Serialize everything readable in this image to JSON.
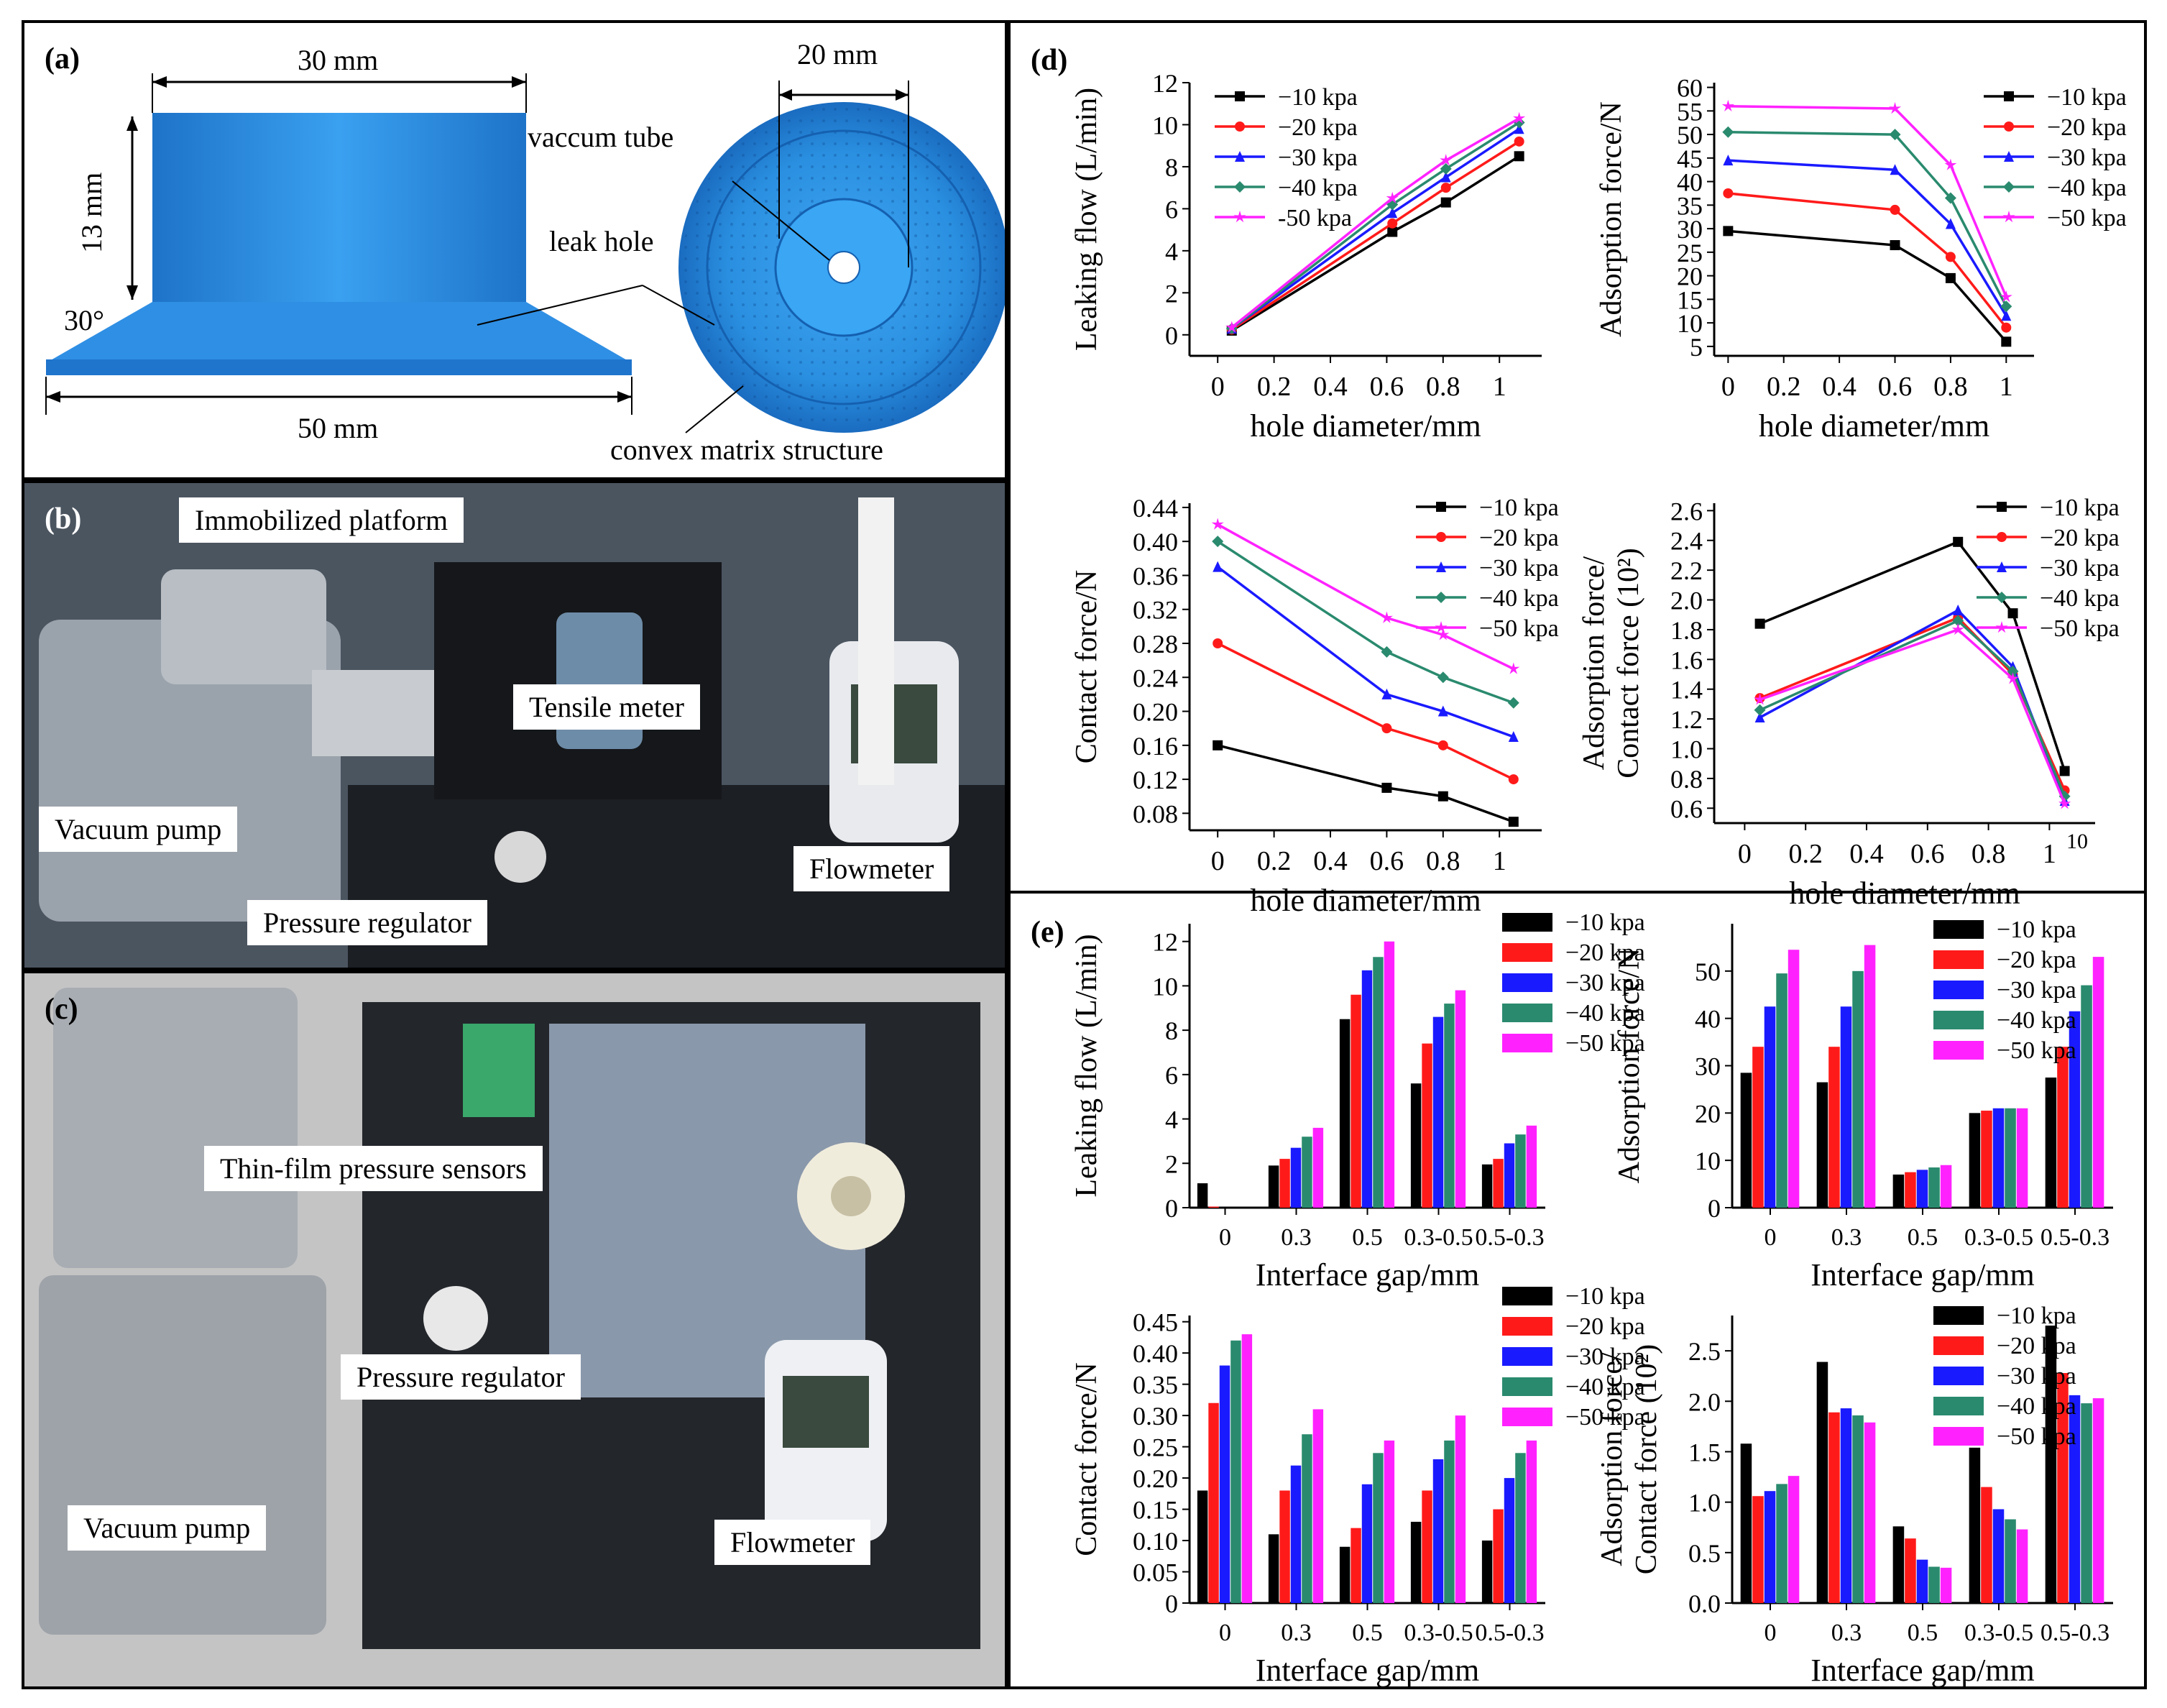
{
  "panels": {
    "a": {
      "label": "(a)",
      "dim_top": "30 mm",
      "dim_height": "13 mm",
      "dim_angle": "30°",
      "dim_bottom": "50 mm",
      "dim_inner": "20 mm",
      "callout_tube": "vaccum tube",
      "callout_hole": "leak hole",
      "callout_matrix": "convex matrix structure"
    },
    "b": {
      "label": "(b)",
      "tags": {
        "platform": "Immobilized platform",
        "tensile": "Tensile meter",
        "pump": "Vacuum pump",
        "flowmeter": "Flowmeter",
        "regulator": "Pressure regulator"
      }
    },
    "c": {
      "label": "(c)",
      "tags": {
        "sensors": "Thin-film pressure sensors",
        "regulator": "Pressure regulator",
        "pump": "Vacuum pump",
        "flowmeter": "Flowmeter"
      }
    },
    "d": {
      "label": "(d)"
    },
    "e": {
      "label": "(e)"
    }
  },
  "colors": {
    "s10": "#000000",
    "s20": "#ff1a1a",
    "s30": "#1a1aff",
    "s40": "#2a8a6e",
    "s50": "#ff22ff",
    "device": "#2a8fe0",
    "photo_dark": "#2a2f36",
    "photo_floor": "#bfbfbf"
  },
  "chart_data": [
    {
      "id": "d1",
      "type": "line",
      "xlabel": "hole diameter/mm",
      "ylabel": "Leaking flow  (L/min)",
      "xlim": [
        -0.1,
        1.15
      ],
      "ylim": [
        -1,
        12
      ],
      "xticks": [
        "0",
        "0.2",
        "0.4",
        "0.6",
        "0.8",
        "1"
      ],
      "xtickvals": [
        0,
        0.2,
        0.4,
        0.6,
        0.8,
        1.0
      ],
      "yticks": [
        "0",
        "2",
        "4",
        "6",
        "8",
        "10",
        "12"
      ],
      "ytickvals": [
        0,
        2,
        4,
        6,
        8,
        10,
        12
      ],
      "x": [
        0.05,
        0.62,
        0.81,
        1.07
      ],
      "series": [
        {
          "name": "−10 kpa",
          "values": [
            0.2,
            4.9,
            6.3,
            8.5
          ]
        },
        {
          "name": "−20 kpa",
          "values": [
            0.25,
            5.3,
            7.0,
            9.2
          ]
        },
        {
          "name": "−30 kpa",
          "values": [
            0.3,
            5.8,
            7.5,
            9.8
          ]
        },
        {
          "name": "−40 kpa",
          "values": [
            0.3,
            6.2,
            7.9,
            10.1
          ]
        },
        {
          "name": "-50 kpa",
          "values": [
            0.35,
            6.5,
            8.3,
            10.3
          ]
        }
      ]
    },
    {
      "id": "d2",
      "type": "line",
      "xlabel": "hole diameter/mm",
      "ylabel": "Adsorption force/N",
      "xlim": [
        -0.05,
        1.1
      ],
      "ylim": [
        3,
        61
      ],
      "xticks": [
        "0",
        "0.2",
        "0.4",
        "0.6",
        "0.8",
        "1"
      ],
      "xtickvals": [
        0,
        0.2,
        0.4,
        0.6,
        0.8,
        1.0
      ],
      "yticks": [
        "5",
        "10",
        "15",
        "20",
        "25",
        "30",
        "35",
        "40",
        "45",
        "50",
        "55",
        "60"
      ],
      "ytickvals": [
        5,
        10,
        15,
        20,
        25,
        30,
        35,
        40,
        45,
        50,
        55,
        60
      ],
      "x": [
        0.0,
        0.6,
        0.8,
        1.0
      ],
      "series": [
        {
          "name": "−10 kpa",
          "values": [
            29.5,
            26.5,
            19.5,
            6
          ]
        },
        {
          "name": "−20 kpa",
          "values": [
            37.5,
            34,
            24,
            9
          ]
        },
        {
          "name": "−30 kpa",
          "values": [
            44.5,
            42.5,
            31,
            11.5
          ]
        },
        {
          "name": "−40 kpa",
          "values": [
            50.5,
            50,
            36.5,
            13.5
          ]
        },
        {
          "name": "−50 kpa",
          "values": [
            56,
            55.5,
            43.5,
            15.5
          ]
        }
      ]
    },
    {
      "id": "d3",
      "type": "line",
      "xlabel": "hole diameter/mm",
      "ylabel": "Contact force/N",
      "xlim": [
        -0.1,
        1.15
      ],
      "ylim": [
        0.06,
        0.445
      ],
      "xticks": [
        "0",
        "0.2",
        "0.4",
        "0.6",
        "0.8",
        "1"
      ],
      "xtickvals": [
        0,
        0.2,
        0.4,
        0.6,
        0.8,
        1.0
      ],
      "yticks": [
        "0.08",
        "0.12",
        "0.16",
        "0.20",
        "0.24",
        "0.28",
        "0.32",
        "0.36",
        "0.40",
        "0.44"
      ],
      "ytickvals": [
        0.08,
        0.12,
        0.16,
        0.2,
        0.24,
        0.28,
        0.32,
        0.36,
        0.4,
        0.44
      ],
      "x": [
        0.0,
        0.6,
        0.8,
        1.05
      ],
      "series": [
        {
          "name": "−10 kpa",
          "values": [
            0.16,
            0.11,
            0.1,
            0.07
          ]
        },
        {
          "name": "−20 kpa",
          "values": [
            0.28,
            0.18,
            0.16,
            0.12
          ]
        },
        {
          "name": "−30 kpa",
          "values": [
            0.37,
            0.22,
            0.2,
            0.17
          ]
        },
        {
          "name": "−40 kpa",
          "values": [
            0.4,
            0.27,
            0.24,
            0.21
          ]
        },
        {
          "name": "−50 kpa",
          "values": [
            0.42,
            0.31,
            0.29,
            0.25
          ]
        }
      ]
    },
    {
      "id": "d4",
      "type": "line",
      "xlabel": "hole diameter/mm",
      "ylabel": "Adsorption force/\nContact force  (10²)",
      "xlim": [
        -0.1,
        1.15
      ],
      "ylim": [
        0.5,
        2.65
      ],
      "xticks": [
        "0",
        "0.2",
        "0.4",
        "0.6",
        "0.8",
        "1"
      ],
      "xtickvals": [
        0,
        0.2,
        0.4,
        0.6,
        0.8,
        1.0
      ],
      "extra_tick": "10",
      "yticks": [
        "0.6",
        "0.8",
        "1.0",
        "1.2",
        "1.4",
        "1.6",
        "1.8",
        "2.0",
        "2.2",
        "2.4",
        "2.6"
      ],
      "ytickvals": [
        0.6,
        0.8,
        1.0,
        1.2,
        1.4,
        1.6,
        1.8,
        2.0,
        2.2,
        2.4,
        2.6
      ],
      "x": [
        0.05,
        0.7,
        0.88,
        1.05
      ],
      "series": [
        {
          "name": "−10 kpa",
          "values": [
            1.84,
            2.39,
            1.91,
            0.85
          ]
        },
        {
          "name": "−20 kpa",
          "values": [
            1.34,
            1.88,
            1.5,
            0.72
          ]
        },
        {
          "name": "−30 kpa",
          "values": [
            1.21,
            1.93,
            1.55,
            0.65
          ]
        },
        {
          "name": "−40 kpa",
          "values": [
            1.26,
            1.86,
            1.52,
            0.68
          ]
        },
        {
          "name": "−50 kpa",
          "values": [
            1.33,
            1.8,
            1.47,
            0.63
          ]
        }
      ]
    },
    {
      "id": "e1",
      "type": "bar",
      "xlabel": "Interface gap/mm",
      "ylabel": "Leaking flow  (L/min)",
      "categories": [
        "0",
        "0.3",
        "0.5",
        "0.3-0.5",
        "0.5-0.3"
      ],
      "ylim": [
        0,
        12.8
      ],
      "yticks": [
        "0",
        "2",
        "4",
        "6",
        "8",
        "10",
        "12"
      ],
      "ytickvals": [
        0,
        2,
        4,
        6,
        8,
        10,
        12
      ],
      "series": [
        {
          "name": "−10 kpa",
          "values": [
            1.1,
            1.9,
            8.5,
            5.6,
            1.95
          ]
        },
        {
          "name": "−20 kpa",
          "values": [
            0.05,
            2.2,
            9.6,
            7.4,
            2.2
          ]
        },
        {
          "name": "−30 kpa",
          "values": [
            0,
            2.7,
            10.7,
            8.6,
            2.9
          ]
        },
        {
          "name": "−40 kpa",
          "values": [
            0,
            3.2,
            11.3,
            9.2,
            3.3
          ]
        },
        {
          "name": "−50 kpa",
          "values": [
            0,
            3.6,
            12.0,
            9.8,
            3.7
          ]
        }
      ]
    },
    {
      "id": "e2",
      "type": "bar",
      "xlabel": "Interface gap/mm",
      "ylabel": "Adsorption force/N",
      "categories": [
        "0",
        "0.3",
        "0.5",
        "0.3-0.5",
        "0.5-0.3"
      ],
      "ylim": [
        0,
        60
      ],
      "yticks": [
        "0",
        "10",
        "20",
        "30",
        "40",
        "50"
      ],
      "ytickvals": [
        0,
        10,
        20,
        30,
        40,
        50
      ],
      "series": [
        {
          "name": "−10 kpa",
          "values": [
            28.5,
            26.5,
            7,
            20,
            27.5
          ]
        },
        {
          "name": "−20 kpa",
          "values": [
            34,
            34,
            7.5,
            20.5,
            34
          ]
        },
        {
          "name": "−30 kpa",
          "values": [
            42.5,
            42.5,
            8,
            21,
            41.5
          ]
        },
        {
          "name": "−40 kpa",
          "values": [
            49.5,
            50,
            8.5,
            21,
            47
          ]
        },
        {
          "name": "−50 kpa",
          "values": [
            54.5,
            55.5,
            9,
            21,
            53
          ]
        }
      ]
    },
    {
      "id": "e3",
      "type": "bar",
      "xlabel": "Interface gap/mm",
      "ylabel": "Contact force/N",
      "categories": [
        "0",
        "0.3",
        "0.5",
        "0.3-0.5",
        "0.5-0.3"
      ],
      "ylim": [
        0,
        0.46
      ],
      "yticks": [
        "0",
        "0.05",
        "0.10",
        "0.15",
        "0.20",
        "0.25",
        "0.30",
        "0.35",
        "0.40",
        "0.45"
      ],
      "ytickvals": [
        0,
        0.05,
        0.1,
        0.15,
        0.2,
        0.25,
        0.3,
        0.35,
        0.4,
        0.45
      ],
      "series": [
        {
          "name": "−10 kpa",
          "values": [
            0.18,
            0.11,
            0.09,
            0.13,
            0.1
          ]
        },
        {
          "name": "−20 kpa",
          "values": [
            0.32,
            0.18,
            0.12,
            0.18,
            0.15
          ]
        },
        {
          "name": "−30 kpa",
          "values": [
            0.38,
            0.22,
            0.19,
            0.23,
            0.2
          ]
        },
        {
          "name": "−40 kpa",
          "values": [
            0.42,
            0.27,
            0.24,
            0.26,
            0.24
          ]
        },
        {
          "name": "−50 kpa",
          "values": [
            0.43,
            0.31,
            0.26,
            0.3,
            0.26
          ]
        }
      ]
    },
    {
      "id": "e4",
      "type": "bar",
      "xlabel": "Interface gap/mm",
      "ylabel": "Adsorption force/\nContact force  (10²)",
      "categories": [
        "0",
        "0.3",
        "0.5",
        "0.3-0.5",
        "0.5-0.3"
      ],
      "ylim": [
        0,
        2.85
      ],
      "yticks": [
        "0.0",
        "0.5",
        "1.0",
        "1.5",
        "2.0",
        "2.5"
      ],
      "ytickvals": [
        0,
        0.5,
        1.0,
        1.5,
        2.0,
        2.5
      ],
      "series": [
        {
          "name": "−10 kpa",
          "values": [
            1.58,
            2.39,
            0.76,
            1.54,
            2.75
          ]
        },
        {
          "name": "−20 kpa",
          "values": [
            1.06,
            1.89,
            0.64,
            1.15,
            2.28
          ]
        },
        {
          "name": "−30 kpa",
          "values": [
            1.11,
            1.93,
            0.43,
            0.93,
            2.06
          ]
        },
        {
          "name": "−40 kpa",
          "values": [
            1.18,
            1.86,
            0.36,
            0.83,
            1.98
          ]
        },
        {
          "name": "−50 kpa",
          "values": [
            1.26,
            1.79,
            0.35,
            0.73,
            2.03
          ]
        }
      ]
    }
  ]
}
